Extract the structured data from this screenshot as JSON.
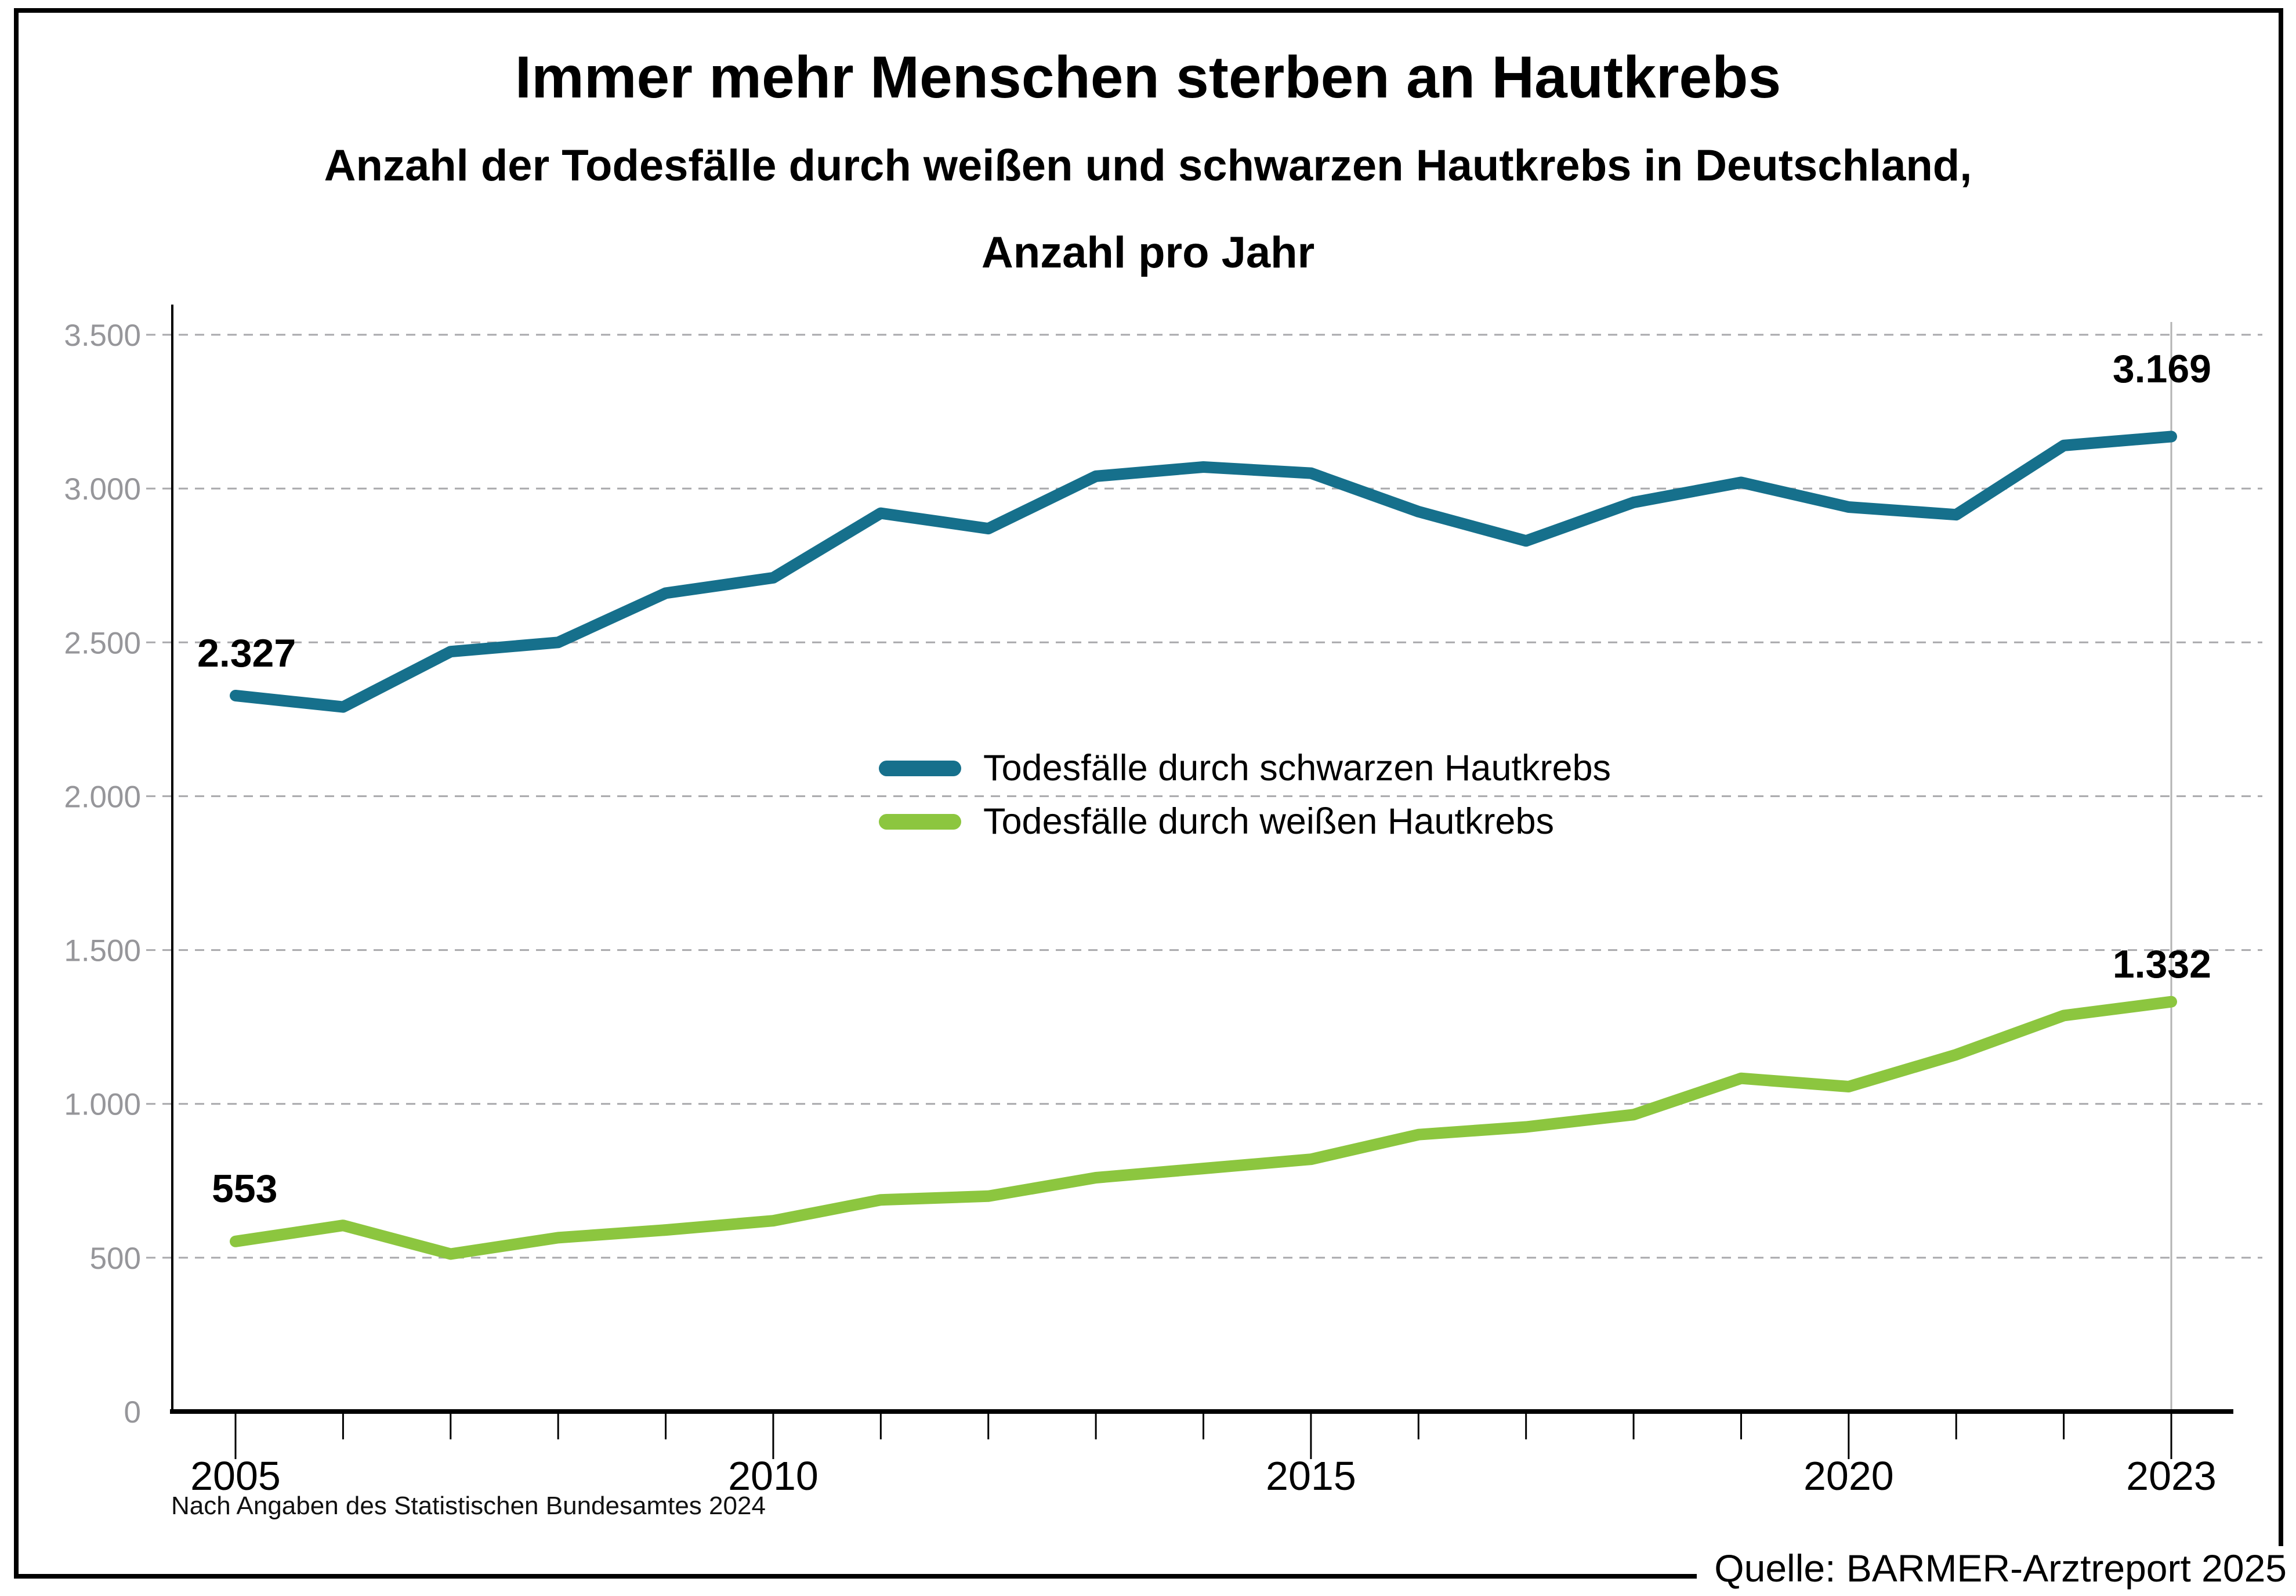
{
  "chart_data": {
    "type": "line",
    "title": "Immer mehr Menschen sterben an Hautkrebs",
    "subtitle_line1": "Anzahl der Todesfälle durch weißen und schwarzen Hautkrebs in Deutschland,",
    "subtitle_line2": "Anzahl pro Jahr",
    "x": [
      2005,
      2006,
      2007,
      2008,
      2009,
      2010,
      2011,
      2012,
      2013,
      2014,
      2015,
      2016,
      2017,
      2018,
      2019,
      2020,
      2021,
      2022,
      2023
    ],
    "x_labeled_ticks": [
      2005,
      2010,
      2015,
      2020,
      2023
    ],
    "xlim": [
      2005,
      2023
    ],
    "ylim": [
      0,
      3500
    ],
    "y_ticks": [
      {
        "value": 0,
        "label": "0"
      },
      {
        "value": 500,
        "label": "500"
      },
      {
        "value": 1000,
        "label": "1.000"
      },
      {
        "value": 1500,
        "label": "1.500"
      },
      {
        "value": 2000,
        "label": "2.000"
      },
      {
        "value": 2500,
        "label": "2.500"
      },
      {
        "value": 3000,
        "label": "3.000"
      },
      {
        "value": 3500,
        "label": "3.500"
      }
    ],
    "grid": "horizontal-dashed",
    "marker_line_year": 2023,
    "legend_position": "center-of-plot",
    "series": [
      {
        "name": "Todesfälle durch schwarzen Hautkrebs",
        "color": "#16708c",
        "values": [
          2327,
          2290,
          2470,
          2500,
          2660,
          2710,
          2920,
          2870,
          3040,
          3070,
          3050,
          2925,
          2830,
          2955,
          3020,
          2940,
          2915,
          3140,
          3169
        ],
        "first_label": "2.327",
        "last_label": "3.169"
      },
      {
        "name": "Todesfälle durch weißen Hautkrebs",
        "color": "#8cc63f",
        "values": [
          553,
          605,
          512,
          565,
          590,
          620,
          688,
          700,
          760,
          790,
          820,
          900,
          925,
          965,
          1083,
          1056,
          1160,
          1287,
          1332
        ],
        "first_label": "553",
        "last_label": "1.332"
      }
    ],
    "footnote": "Nach Angaben des Statistischen Bundesamtes 2024",
    "source": "Quelle: BARMER-Arztreport 2025",
    "style_colors": {
      "grid": "#a9a9ac",
      "axis": "#000000",
      "y_tick_label": "#96969a",
      "x_tick_label": "#000000",
      "year_marker_line": "#b4b4b4",
      "background": "#ffffff",
      "frame_border": "#000000"
    }
  }
}
